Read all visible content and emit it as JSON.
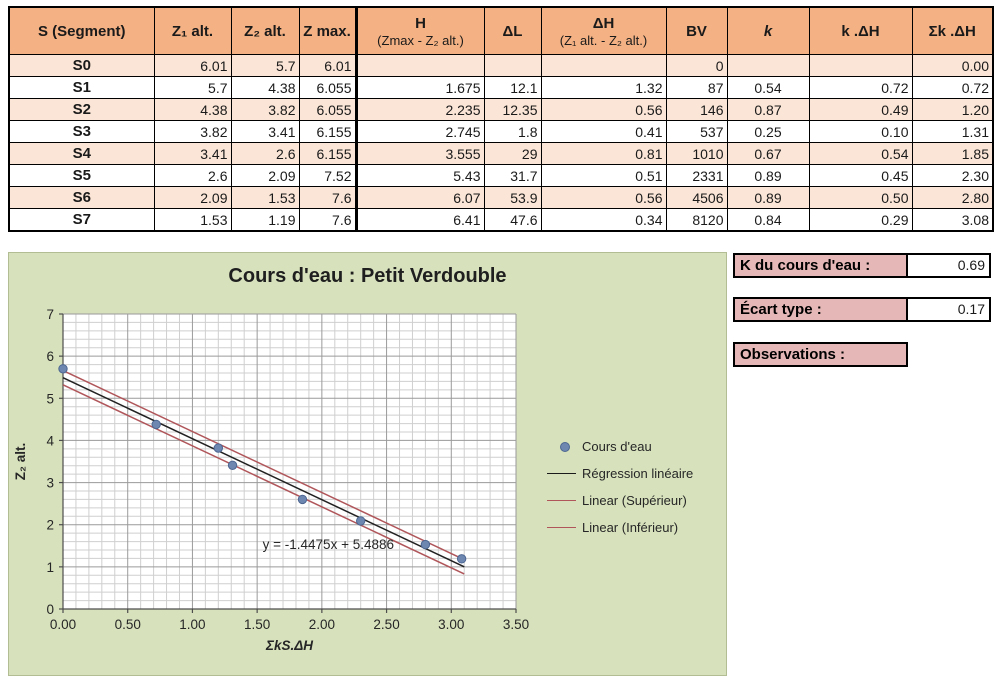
{
  "colors": {
    "header_bg": "#F4B183",
    "stripe_bg": "#FBE5D6",
    "panel_bg": "#D7E2BC",
    "label_bg": "#E5B8B7"
  },
  "table": {
    "columns": [
      {
        "line1": "S (Segment)"
      },
      {
        "line1": "Z₁ alt."
      },
      {
        "line1": "Z₂ alt."
      },
      {
        "line1": "Z max."
      },
      {
        "line1": "H",
        "line2": "(Zmax - Z₂ alt.)"
      },
      {
        "line1": "ΔL"
      },
      {
        "line1": "ΔH",
        "line2": "(Z₁ alt. - Z₂ alt.)"
      },
      {
        "line1": "BV"
      },
      {
        "line1": "k"
      },
      {
        "line1": "k .ΔH"
      },
      {
        "line1": "Σk .ΔH"
      }
    ],
    "rows": [
      [
        "S0",
        "6.01",
        "5.7",
        "6.01",
        "",
        "",
        "",
        "0",
        "",
        "",
        "0.00"
      ],
      [
        "S1",
        "5.7",
        "4.38",
        "6.055",
        "1.675",
        "12.1",
        "1.32",
        "87",
        "0.54",
        "0.72",
        "0.72"
      ],
      [
        "S2",
        "4.38",
        "3.82",
        "6.055",
        "2.235",
        "12.35",
        "0.56",
        "146",
        "0.87",
        "0.49",
        "1.20"
      ],
      [
        "S3",
        "3.82",
        "3.41",
        "6.155",
        "2.745",
        "1.8",
        "0.41",
        "537",
        "0.25",
        "0.10",
        "1.31"
      ],
      [
        "S4",
        "3.41",
        "2.6",
        "6.155",
        "3.555",
        "29",
        "0.81",
        "1010",
        "0.67",
        "0.54",
        "1.85"
      ],
      [
        "S5",
        "2.6",
        "2.09",
        "7.52",
        "5.43",
        "31.7",
        "0.51",
        "2331",
        "0.89",
        "0.45",
        "2.30"
      ],
      [
        "S6",
        "2.09",
        "1.53",
        "7.6",
        "6.07",
        "53.9",
        "0.56",
        "4506",
        "0.89",
        "0.50",
        "2.80"
      ],
      [
        "S7",
        "1.53",
        "1.19",
        "7.6",
        "6.41",
        "47.6",
        "0.34",
        "8120",
        "0.84",
        "0.29",
        "3.08"
      ]
    ]
  },
  "side": {
    "k_label": "K du cours d'eau :",
    "k_value": "0.69",
    "ecart_label": "Écart type :",
    "ecart_value": "0.17",
    "observations_label": "Observations :"
  },
  "chart_data": {
    "type": "scatter",
    "title": "Cours d'eau : Petit Verdouble",
    "xlabel": "ΣkS.ΔH",
    "ylabel": "Z₂ alt.",
    "xlim": [
      0,
      3.5
    ],
    "ylim": [
      0,
      7
    ],
    "x_tick_step": 0.5,
    "x_minor_step": 0.1,
    "y_tick_step": 1,
    "y_minor_step": 0.2,
    "x_tick_decimals": 2,
    "grid": "major+minor",
    "points": [
      [
        0.0,
        5.7
      ],
      [
        0.72,
        4.38
      ],
      [
        1.2,
        3.82
      ],
      [
        1.31,
        3.41
      ],
      [
        1.85,
        2.6
      ],
      [
        2.3,
        2.09
      ],
      [
        2.8,
        1.53
      ],
      [
        3.08,
        1.19
      ]
    ],
    "regression": {
      "slope": -1.4475,
      "intercept": 5.4886,
      "x_start": 0,
      "x_end": 3.1
    },
    "band_offset": 0.17,
    "equation_label": "y = -1.4475x + 5.4886",
    "equation_pos": [
      2.05,
      1.42
    ],
    "legend_position": "right",
    "legend": [
      {
        "label": "Cours d'eau",
        "marker": "point",
        "color": "#6d87b0"
      },
      {
        "label": "Régression linéaire",
        "marker": "line",
        "color": "#1a1a1a"
      },
      {
        "label": "Linear (Supérieur)",
        "marker": "line",
        "color": "#b0565a"
      },
      {
        "label": "Linear (Inférieur)",
        "marker": "line",
        "color": "#b0565a"
      }
    ],
    "colors": {
      "point_fill": "#6d87b0",
      "point_stroke": "#4c6691",
      "regression": "#212121",
      "band": "#b0565a",
      "grid_minor": "#cfcfcf",
      "grid_major": "#9a9a9a",
      "axis": "#4d4d4d",
      "text": "#262626"
    }
  }
}
